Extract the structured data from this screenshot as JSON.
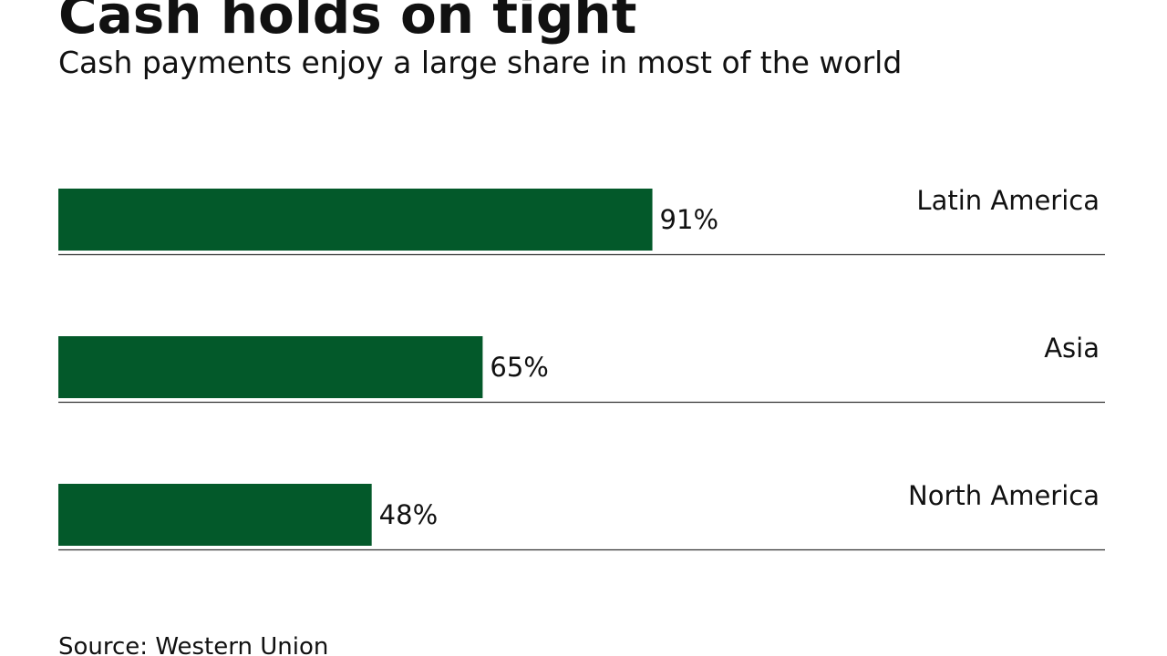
{
  "chart_data": {
    "type": "hbar",
    "title": "Cash holds on tight",
    "subtitle": "Cash payments enjoy a large share in most of the world",
    "categories": [
      "Latin America",
      "Asia",
      "North America"
    ],
    "values": [
      91,
      65,
      48
    ],
    "value_labels": [
      "91%",
      "65%",
      "48%"
    ],
    "color": "#03592a",
    "xlim": [
      0,
      100
    ],
    "source": "Source: Western Union"
  }
}
